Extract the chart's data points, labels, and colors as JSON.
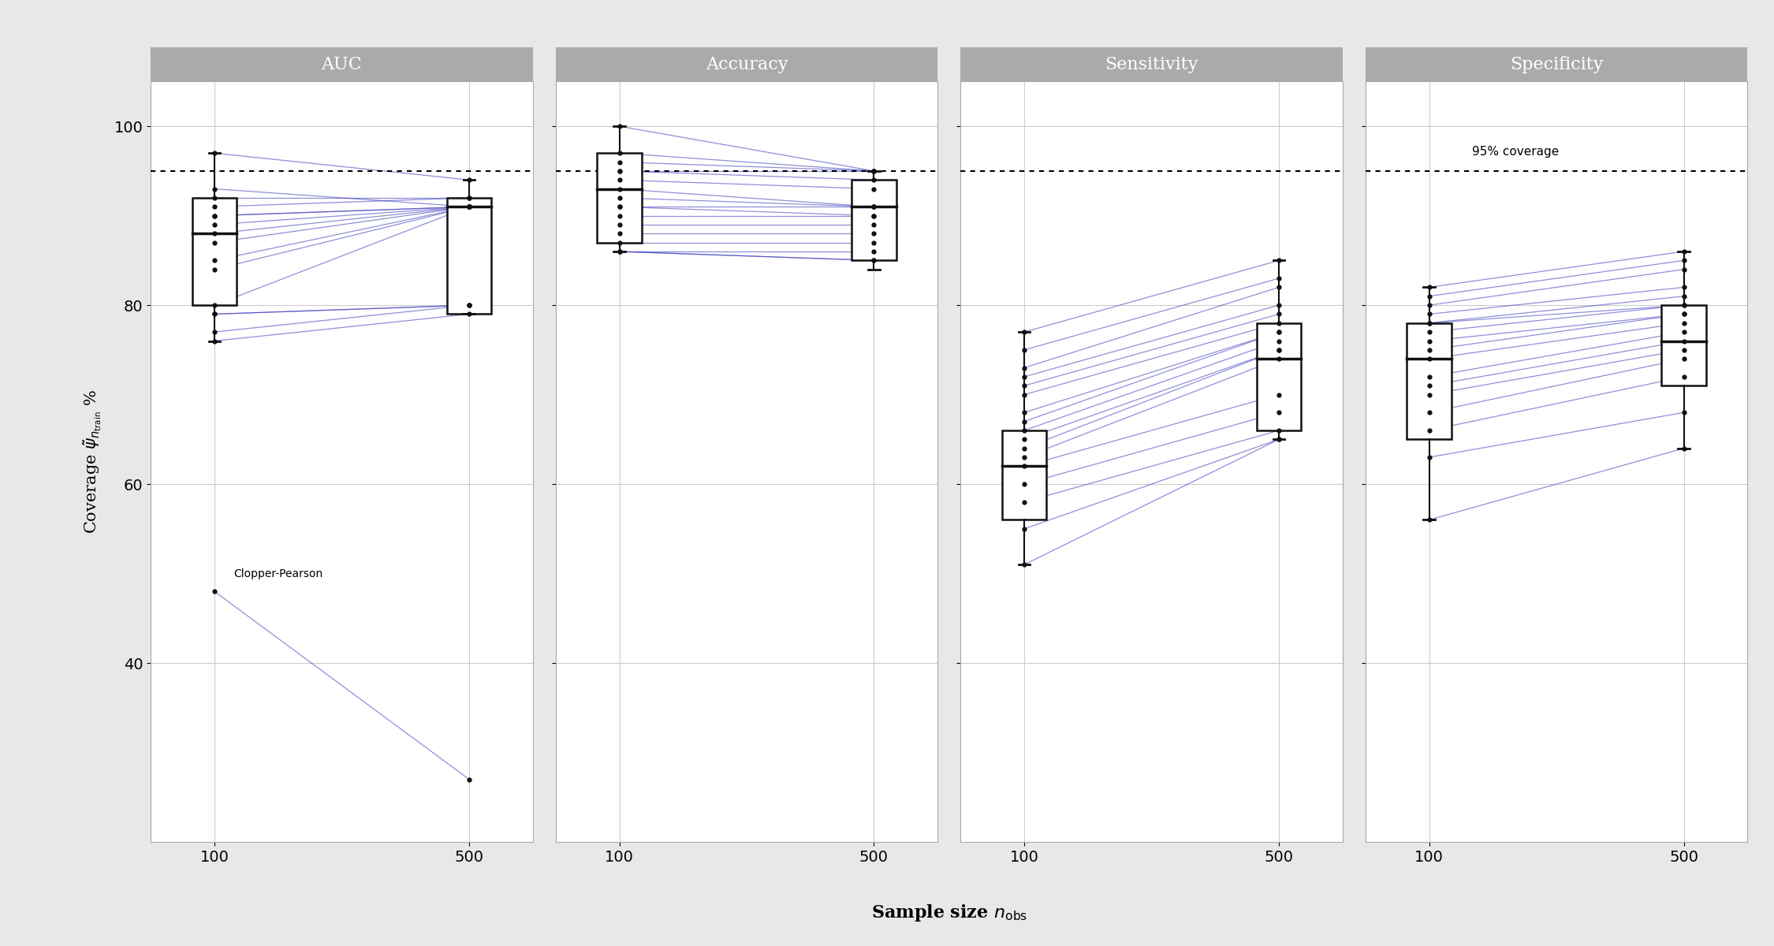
{
  "panels": [
    "AUC",
    "Accuracy",
    "Sensitivity",
    "Specificity"
  ],
  "x_positions": [
    100,
    500
  ],
  "x_ticks": [
    100,
    500
  ],
  "xlabel": "Sample size n_obs",
  "reference_line": 95,
  "reference_label": "95% coverage",
  "outer_bg_color": "#e8e8e8",
  "panel_bg_color": "#ffffff",
  "title_bg_color": "#aaaaaa",
  "title_text_color": "#ffffff",
  "line_color": "#3333bb",
  "box_color": "#111111",
  "dot_color": "#111111",
  "grid_color": "#cccccc",
  "annotation_AUC": "Clopper-Pearson",
  "AUC": {
    "box_100": {
      "q1": 80,
      "median": 88,
      "q3": 92,
      "whislo": 76,
      "whishi": 97
    },
    "box_500": {
      "q1": 79,
      "median": 91,
      "q3": 92,
      "whislo": 79,
      "whishi": 94
    },
    "lines": [
      [
        97,
        94
      ],
      [
        93,
        91
      ],
      [
        92,
        92
      ],
      [
        91,
        92
      ],
      [
        90,
        91
      ],
      [
        90,
        91
      ],
      [
        89,
        91
      ],
      [
        88,
        91
      ],
      [
        87,
        91
      ],
      [
        85,
        91
      ],
      [
        84,
        91
      ],
      [
        80,
        91
      ],
      [
        79,
        80
      ],
      [
        79,
        80
      ],
      [
        77,
        80
      ],
      [
        76,
        79
      ],
      [
        48,
        27
      ]
    ]
  },
  "Accuracy": {
    "box_100": {
      "q1": 87,
      "median": 93,
      "q3": 97,
      "whislo": 86,
      "whishi": 100
    },
    "box_500": {
      "q1": 85,
      "median": 91,
      "q3": 94,
      "whislo": 84,
      "whishi": 95
    },
    "lines": [
      [
        100,
        95
      ],
      [
        97,
        95
      ],
      [
        96,
        95
      ],
      [
        95,
        95
      ],
      [
        95,
        94
      ],
      [
        94,
        93
      ],
      [
        93,
        91
      ],
      [
        92,
        91
      ],
      [
        91,
        91
      ],
      [
        91,
        90
      ],
      [
        90,
        90
      ],
      [
        89,
        89
      ],
      [
        88,
        88
      ],
      [
        87,
        87
      ],
      [
        86,
        86
      ],
      [
        86,
        85
      ],
      [
        86,
        85
      ]
    ]
  },
  "Sensitivity": {
    "box_100": {
      "q1": 56,
      "median": 62,
      "q3": 66,
      "whislo": 51,
      "whishi": 77
    },
    "box_500": {
      "q1": 66,
      "median": 74,
      "q3": 78,
      "whislo": 65,
      "whishi": 85
    },
    "lines": [
      [
        77,
        85
      ],
      [
        75,
        83
      ],
      [
        73,
        82
      ],
      [
        72,
        80
      ],
      [
        71,
        79
      ],
      [
        70,
        78
      ],
      [
        68,
        77
      ],
      [
        67,
        77
      ],
      [
        66,
        76
      ],
      [
        65,
        75
      ],
      [
        64,
        75
      ],
      [
        63,
        74
      ],
      [
        62,
        70
      ],
      [
        60,
        68
      ],
      [
        58,
        66
      ],
      [
        55,
        65
      ],
      [
        51,
        65
      ]
    ]
  },
  "Specificity": {
    "box_100": {
      "q1": 65,
      "median": 74,
      "q3": 78,
      "whislo": 56,
      "whishi": 82
    },
    "box_500": {
      "q1": 71,
      "median": 76,
      "q3": 80,
      "whislo": 64,
      "whishi": 86
    },
    "lines": [
      [
        82,
        86
      ],
      [
        81,
        85
      ],
      [
        80,
        84
      ],
      [
        79,
        82
      ],
      [
        78,
        81
      ],
      [
        78,
        80
      ],
      [
        77,
        80
      ],
      [
        76,
        79
      ],
      [
        75,
        79
      ],
      [
        74,
        78
      ],
      [
        72,
        77
      ],
      [
        71,
        76
      ],
      [
        70,
        75
      ],
      [
        68,
        74
      ],
      [
        66,
        72
      ],
      [
        63,
        68
      ],
      [
        56,
        64
      ]
    ]
  },
  "ylim": [
    20,
    105
  ],
  "yticks": [
    40,
    60,
    80,
    100
  ],
  "figsize": [
    22.5,
    12.0
  ],
  "dpi": 100
}
